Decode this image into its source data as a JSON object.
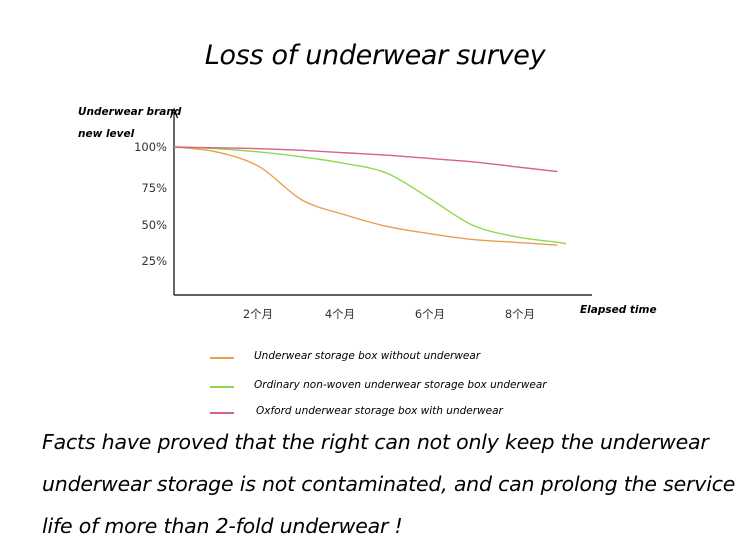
{
  "title": "Loss of underwear survey",
  "chart_data": {
    "type": "line",
    "title": "Loss of underwear survey",
    "ylabel_lines": [
      "Underwear brand",
      "new level"
    ],
    "xlabel": "Elapsed time",
    "y_ticks": [
      "100%",
      "75%",
      "50%",
      "25%"
    ],
    "x_ticks": [
      "2个月",
      "4个月",
      "6个月",
      "8个月"
    ],
    "ylim": [
      0,
      100
    ],
    "xlim": [
      0,
      10
    ],
    "grid": false,
    "legend_position": "bottom",
    "series": [
      {
        "name": "Underwear storage box without underwear",
        "color": "#e8a050",
        "x": [
          0,
          1,
          2,
          3,
          4,
          5,
          6,
          7,
          8,
          9
        ],
        "y": [
          100,
          97,
          88,
          67,
          57,
          49,
          44,
          40,
          38,
          36
        ]
      },
      {
        "name": "Ordinary non-woven underwear storage box underwear",
        "color": "#8ed84c",
        "x": [
          0,
          1,
          2,
          3,
          4,
          5,
          6,
          7,
          8,
          9,
          9.2
        ],
        "y": [
          100,
          99,
          97,
          94,
          90,
          84,
          68,
          50,
          42,
          38,
          37
        ]
      },
      {
        "name": "Oxford underwear storage box with underwear",
        "color": "#d9608a",
        "x": [
          0,
          1,
          2,
          3,
          4,
          5,
          6,
          7,
          8,
          9
        ],
        "y": [
          100,
          99.5,
          99,
          98,
          96.5,
          95,
          93,
          91,
          88,
          85
        ]
      }
    ]
  },
  "footer_lines": [
    "Facts have proved that the right can not only keep the underwear",
    "underwear storage is not contaminated, and can prolong the service",
    "life of more than 2-fold underwear !"
  ]
}
